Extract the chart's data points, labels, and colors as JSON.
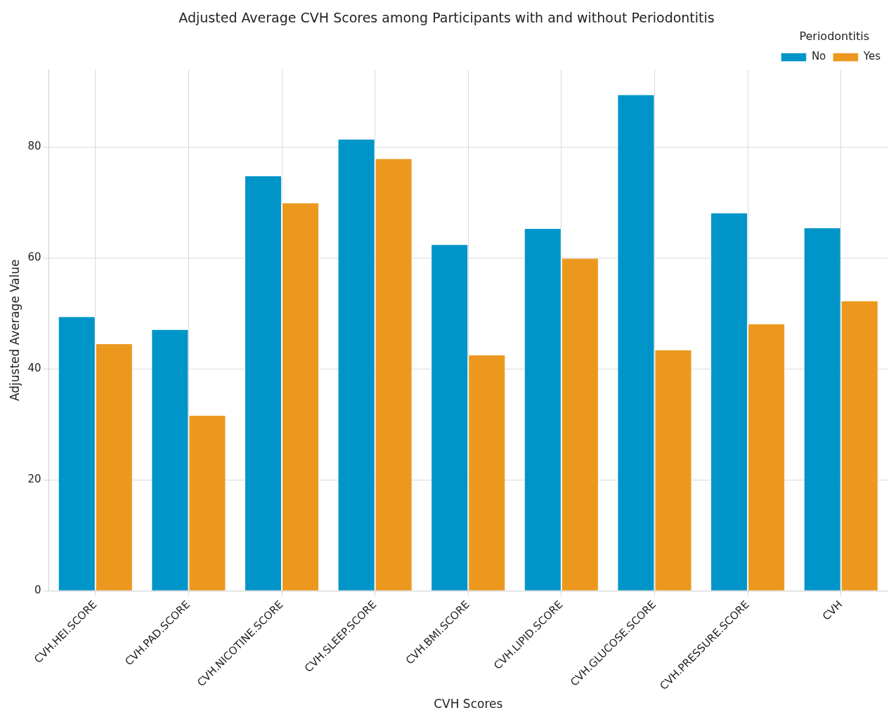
{
  "chart_data": {
    "type": "bar",
    "title": "Adjusted Average CVH Scores among Participants with and without Periodontitis",
    "xlabel": "CVH Scores",
    "ylabel": "Adjusted Average Value",
    "legend_title": "Periodontitis",
    "categories": [
      "CVH.HEI.SCORE",
      "CVH.PAD.SCORE",
      "CVH.NICOTINE.SCORE",
      "CVH.SLEEP.SCORE",
      "CVH.BMI.SCORE",
      "CVH.LIPID.SCORE",
      "CVH.GLUCOSE.SCORE",
      "CVH.PRESSURE.SCORE",
      "CVH"
    ],
    "series": [
      {
        "name": "No",
        "color": "#0095c8",
        "values": [
          49.4,
          47.1,
          74.8,
          81.4,
          62.4,
          65.3,
          89.4,
          68.1,
          65.4
        ]
      },
      {
        "name": "Yes",
        "color": "#ec981f",
        "values": [
          44.5,
          31.6,
          69.9,
          77.9,
          42.5,
          59.9,
          43.4,
          48.1,
          52.2
        ]
      }
    ],
    "ylim": [
      0,
      94
    ],
    "yticks": [
      0,
      20,
      40,
      60,
      80
    ],
    "grid": true,
    "legend": "top right"
  }
}
